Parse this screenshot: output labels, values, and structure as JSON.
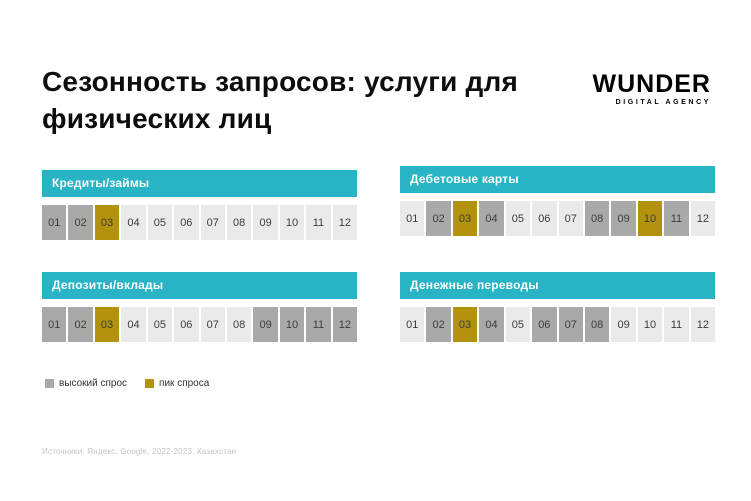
{
  "title": "Сезонность запросов: услуги для физических лиц",
  "logo": {
    "text": "WUNDER",
    "subtext": "DIGITAL AGENCY"
  },
  "colors": {
    "accent": "#29b4c6",
    "normal": "#eaeaea",
    "high": "#a9a9a9",
    "peak": "#b3930e"
  },
  "chart_data": {
    "type": "heatmap",
    "title": "Сезонность запросов: услуги для физических лиц",
    "x": [
      "01",
      "02",
      "03",
      "04",
      "05",
      "06",
      "07",
      "08",
      "09",
      "10",
      "11",
      "12"
    ],
    "value_scale": [
      "normal",
      "high",
      "peak"
    ],
    "legend_position": "bottom-left",
    "series": [
      {
        "name": "Кредиты/займы",
        "values": [
          "high",
          "high",
          "peak",
          "normal",
          "normal",
          "normal",
          "normal",
          "normal",
          "normal",
          "normal",
          "normal",
          "normal"
        ]
      },
      {
        "name": "Дебетовые карты",
        "values": [
          "normal",
          "high",
          "peak",
          "high",
          "normal",
          "normal",
          "normal",
          "high",
          "high",
          "peak",
          "high",
          "normal"
        ]
      },
      {
        "name": "Депозиты/вклады",
        "values": [
          "high",
          "high",
          "peak",
          "normal",
          "normal",
          "normal",
          "normal",
          "normal",
          "high",
          "high",
          "high",
          "high"
        ]
      },
      {
        "name": "Денежные переводы",
        "values": [
          "normal",
          "high",
          "peak",
          "high",
          "normal",
          "high",
          "high",
          "high",
          "normal",
          "normal",
          "normal",
          "normal"
        ]
      }
    ]
  },
  "legend": [
    {
      "label": "высокий спрос",
      "state": "high"
    },
    {
      "label": "пик спроса",
      "state": "peak"
    }
  ],
  "source": "Источники: Яндекс, Google, 2022-2023, Казахстан"
}
